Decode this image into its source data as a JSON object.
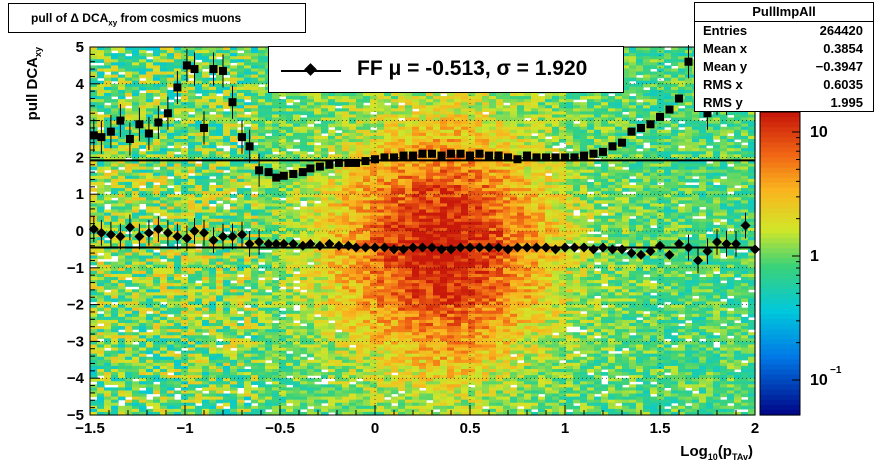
{
  "title": {
    "main": "pull of Δ DCA",
    "sub": "xy",
    "suffix": "from cosmics muons"
  },
  "stats": {
    "name": "PullImpAll",
    "rows": [
      {
        "key": "Entries",
        "value": "264420"
      },
      {
        "key": "Mean x",
        "value": "0.3854"
      },
      {
        "key": "Mean y",
        "value": "−0.3947"
      },
      {
        "key": "RMS x",
        "value": "0.6035"
      },
      {
        "key": "RMS y",
        "value": "1.995"
      }
    ]
  },
  "legend": {
    "text": "FF μ = -0.513, σ =   1.920"
  },
  "colors": {
    "marker": "#000000",
    "heat_low": "#20a0e0",
    "heat_mid": "#e0e020",
    "heat_high": "#d83010"
  },
  "chart_data": {
    "type": "heatmap",
    "xlabel": "Log10(pTAv)",
    "ylabel": "pull DCAxy",
    "xlim": [
      -1.5,
      2
    ],
    "ylim": [
      -5,
      5
    ],
    "x_ticks": [
      "−1.5",
      "−1",
      "−0.5",
      "0",
      "0.5",
      "1",
      "1.5",
      "2"
    ],
    "y_ticks": [
      "−5",
      "−4",
      "−3",
      "−2",
      "−1",
      "0",
      "1",
      "2",
      "3",
      "4",
      "5"
    ],
    "colorbar": {
      "scale": "log",
      "ticks": [
        "10",
        "1",
        "10−1"
      ]
    },
    "grid": true,
    "mean_line": 1.92,
    "mean_line_lower": -0.45,
    "series": [
      {
        "name": "sigma",
        "marker": "square",
        "x": [
          -1.48,
          -1.44,
          -1.39,
          -1.34,
          -1.29,
          -1.24,
          -1.19,
          -1.14,
          -1.09,
          -1.04,
          -0.99,
          -0.95,
          -0.9,
          -0.85,
          -0.8,
          -0.75,
          -0.7,
          -0.66,
          -0.61,
          -0.56,
          -0.52,
          -0.48,
          -0.43,
          -0.38,
          -0.34,
          -0.29,
          -0.24,
          -0.19,
          -0.14,
          -0.1,
          -0.05,
          0.0,
          0.05,
          0.1,
          0.15,
          0.2,
          0.25,
          0.3,
          0.35,
          0.4,
          0.45,
          0.5,
          0.55,
          0.6,
          0.65,
          0.7,
          0.75,
          0.8,
          0.85,
          0.9,
          0.95,
          1.0,
          1.05,
          1.1,
          1.15,
          1.2,
          1.25,
          1.3,
          1.35,
          1.4,
          1.45,
          1.5,
          1.55,
          1.6,
          1.65,
          1.7,
          1.75,
          1.8,
          1.85,
          1.9
        ],
        "y": [
          2.6,
          2.55,
          2.7,
          3.0,
          2.5,
          2.9,
          2.65,
          2.95,
          3.2,
          3.9,
          4.5,
          4.4,
          2.8,
          4.4,
          4.35,
          3.5,
          2.55,
          2.3,
          1.65,
          1.6,
          1.45,
          1.5,
          1.55,
          1.6,
          1.7,
          1.75,
          1.8,
          1.85,
          1.85,
          1.85,
          1.9,
          1.95,
          2.0,
          2.0,
          2.05,
          2.05,
          2.1,
          2.1,
          2.05,
          2.1,
          2.1,
          2.05,
          2.1,
          2.05,
          2.05,
          2.0,
          1.95,
          2.05,
          2.0,
          2.0,
          2.0,
          2.0,
          2.0,
          2.05,
          2.1,
          2.15,
          2.3,
          2.4,
          2.7,
          2.8,
          2.9,
          3.1,
          3.3,
          3.6,
          4.6,
          4.65,
          3.2,
          3.6,
          3.6,
          3.7
        ]
      },
      {
        "name": "mean",
        "marker": "diamond",
        "x": [
          -1.48,
          -1.44,
          -1.39,
          -1.34,
          -1.29,
          -1.24,
          -1.19,
          -1.14,
          -1.09,
          -1.04,
          -0.99,
          -0.95,
          -0.9,
          -0.85,
          -0.8,
          -0.75,
          -0.7,
          -0.66,
          -0.61,
          -0.56,
          -0.52,
          -0.48,
          -0.43,
          -0.38,
          -0.34,
          -0.29,
          -0.24,
          -0.19,
          -0.14,
          -0.1,
          -0.05,
          0.0,
          0.05,
          0.1,
          0.15,
          0.2,
          0.25,
          0.3,
          0.35,
          0.4,
          0.45,
          0.5,
          0.55,
          0.6,
          0.65,
          0.7,
          0.75,
          0.8,
          0.85,
          0.9,
          0.95,
          1.0,
          1.05,
          1.1,
          1.15,
          1.2,
          1.25,
          1.3,
          1.35,
          1.4,
          1.45,
          1.5,
          1.55,
          1.6,
          1.65,
          1.7,
          1.75,
          1.8,
          1.85,
          1.9,
          1.95,
          2.0
        ],
        "y": [
          0.05,
          -0.05,
          -0.1,
          -0.15,
          0.1,
          -0.15,
          -0.05,
          0.05,
          -0.05,
          -0.15,
          -0.2,
          0.0,
          -0.05,
          -0.25,
          -0.15,
          -0.15,
          -0.1,
          -0.35,
          -0.3,
          -0.35,
          -0.35,
          -0.35,
          -0.35,
          -0.4,
          -0.35,
          -0.4,
          -0.35,
          -0.4,
          -0.4,
          -0.45,
          -0.45,
          -0.45,
          -0.45,
          -0.5,
          -0.5,
          -0.45,
          -0.45,
          -0.45,
          -0.5,
          -0.5,
          -0.45,
          -0.45,
          -0.45,
          -0.45,
          -0.45,
          -0.5,
          -0.45,
          -0.45,
          -0.45,
          -0.45,
          -0.5,
          -0.45,
          -0.45,
          -0.45,
          -0.5,
          -0.45,
          -0.5,
          -0.5,
          -0.6,
          -0.65,
          -0.55,
          -0.4,
          -0.65,
          -0.35,
          -0.45,
          -0.8,
          -0.55,
          -0.3,
          -0.35,
          -0.35,
          0.15,
          -0.5
        ]
      }
    ]
  }
}
